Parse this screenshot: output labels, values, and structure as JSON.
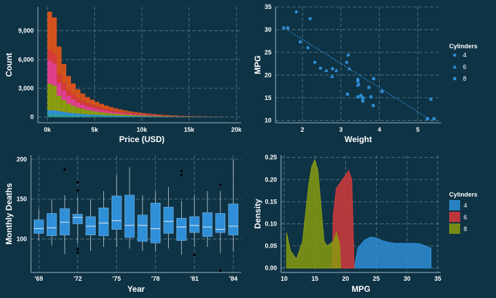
{
  "colors": {
    "background": "#0e3345",
    "blue": "#2f8fd8",
    "red": "#d83a3a",
    "olive": "#8a9c0f",
    "orange": "#d4521c",
    "pink": "#e0408e",
    "teal": "#2aa198"
  },
  "chart_data": [
    {
      "type": "bar",
      "stacked": true,
      "xlabel": "Price (USD)",
      "ylabel": "Count",
      "xticks": [
        0,
        5000,
        10000,
        15000,
        20000
      ],
      "xtick_labels": [
        "0k",
        "5k",
        "10k",
        "15k",
        "20k"
      ],
      "yticks": [
        0,
        3000,
        6000,
        9000
      ],
      "ytick_labels": [
        "0",
        "3,000",
        "6,000",
        "9,000"
      ],
      "xlim": [
        -1000,
        20500
      ],
      "ylim": [
        -600,
        11500
      ],
      "bin_start": 0,
      "bin_width": 500,
      "series": [
        {
          "name": "teal",
          "color": "#2aa198",
          "values": [
            300,
            300,
            260,
            230,
            200,
            180,
            160,
            140,
            120,
            110,
            100,
            90,
            80,
            70,
            60,
            55,
            50,
            45,
            40,
            35,
            30,
            25,
            20,
            18,
            16,
            14,
            12,
            10,
            9,
            8,
            7,
            6,
            5,
            5,
            4,
            4,
            3,
            3
          ]
        },
        {
          "name": "blue",
          "color": "#2f8fd8",
          "values": [
            400,
            400,
            350,
            300,
            260,
            230,
            200,
            180,
            160,
            140,
            125,
            110,
            100,
            90,
            80,
            70,
            62,
            55,
            50,
            45,
            40,
            36,
            32,
            28,
            25,
            22,
            19,
            16,
            14,
            12,
            10,
            9,
            8,
            7,
            6,
            5,
            4,
            4
          ]
        },
        {
          "name": "olive",
          "color": "#8a9c0f",
          "values": [
            2800,
            2600,
            1600,
            1250,
            950,
            780,
            640,
            540,
            460,
            400,
            350,
            300,
            260,
            230,
            200,
            175,
            150,
            130,
            115,
            100,
            90,
            80,
            70,
            60,
            52,
            45,
            40,
            35,
            30,
            26,
            22,
            19,
            16,
            14,
            12,
            10,
            8,
            6
          ]
        },
        {
          "name": "pink",
          "color": "#e0408e",
          "values": [
            2400,
            2300,
            1350,
            1000,
            800,
            650,
            530,
            440,
            370,
            320,
            280,
            240,
            210,
            185,
            160,
            140,
            120,
            105,
            92,
            80,
            70,
            62,
            55,
            48,
            42,
            36,
            31,
            27,
            23,
            20,
            17,
            15,
            13,
            11,
            9,
            8,
            7,
            6
          ]
        },
        {
          "name": "red",
          "color": "#d83a3a",
          "values": [
            1100,
            1000,
            900,
            750,
            620,
            520,
            440,
            380,
            330,
            290,
            250,
            220,
            190,
            165,
            145,
            125,
            110,
            95,
            82,
            72,
            62,
            55,
            48,
            42,
            36,
            31,
            27,
            23,
            20,
            17,
            15,
            13,
            11,
            9,
            8,
            7,
            6,
            5
          ]
        },
        {
          "name": "orange",
          "color": "#d4521c",
          "values": [
            4000,
            3800,
            2900,
            2000,
            1450,
            1150,
            930,
            770,
            650,
            560,
            480,
            410,
            355,
            305,
            265,
            230,
            200,
            170,
            148,
            128,
            110,
            95,
            82,
            72,
            62,
            53,
            46,
            40,
            34,
            29,
            25,
            21,
            18,
            15,
            13,
            11,
            9,
            7
          ]
        }
      ]
    },
    {
      "type": "scatter",
      "xlabel": "Weight",
      "ylabel": "MPG",
      "xticks": [
        2,
        3,
        4,
        5
      ],
      "yticks": [
        10,
        15,
        20,
        25,
        30,
        35
      ],
      "xlim": [
        1.3,
        5.6
      ],
      "ylim": [
        9.5,
        35
      ],
      "legend_title": "Cylinders",
      "legend_labels": [
        "4",
        "6",
        "8"
      ],
      "trend": {
        "x0": 1.5,
        "y0": 30.5,
        "x1": 5.4,
        "y1": 9.8
      },
      "points": [
        {
          "x": 1.51,
          "y": 30.4,
          "cyl": "4"
        },
        {
          "x": 1.62,
          "y": 30.4,
          "cyl": "4"
        },
        {
          "x": 1.84,
          "y": 33.9,
          "cyl": "4"
        },
        {
          "x": 1.94,
          "y": 27.3,
          "cyl": "4"
        },
        {
          "x": 2.14,
          "y": 26.0,
          "cyl": "4"
        },
        {
          "x": 2.2,
          "y": 32.4,
          "cyl": "4"
        },
        {
          "x": 2.32,
          "y": 22.8,
          "cyl": "4"
        },
        {
          "x": 2.47,
          "y": 21.5,
          "cyl": "4"
        },
        {
          "x": 2.62,
          "y": 21.0,
          "cyl": "6"
        },
        {
          "x": 2.77,
          "y": 19.7,
          "cyl": "6"
        },
        {
          "x": 2.78,
          "y": 21.4,
          "cyl": "4"
        },
        {
          "x": 2.88,
          "y": 21.0,
          "cyl": "6"
        },
        {
          "x": 3.15,
          "y": 22.8,
          "cyl": "4"
        },
        {
          "x": 3.17,
          "y": 15.8,
          "cyl": "8"
        },
        {
          "x": 3.19,
          "y": 24.4,
          "cyl": "4"
        },
        {
          "x": 3.22,
          "y": 21.4,
          "cyl": "6"
        },
        {
          "x": 3.44,
          "y": 19.2,
          "cyl": "6"
        },
        {
          "x": 3.44,
          "y": 17.8,
          "cyl": "6"
        },
        {
          "x": 3.44,
          "y": 18.7,
          "cyl": "8"
        },
        {
          "x": 3.46,
          "y": 18.1,
          "cyl": "6"
        },
        {
          "x": 3.44,
          "y": 15.2,
          "cyl": "8"
        },
        {
          "x": 3.52,
          "y": 15.5,
          "cyl": "8"
        },
        {
          "x": 3.57,
          "y": 14.3,
          "cyl": "8"
        },
        {
          "x": 3.57,
          "y": 15.0,
          "cyl": "8"
        },
        {
          "x": 3.73,
          "y": 17.3,
          "cyl": "8"
        },
        {
          "x": 3.78,
          "y": 15.2,
          "cyl": "8"
        },
        {
          "x": 3.84,
          "y": 13.3,
          "cyl": "8"
        },
        {
          "x": 3.85,
          "y": 19.2,
          "cyl": "8"
        },
        {
          "x": 4.07,
          "y": 16.4,
          "cyl": "8"
        },
        {
          "x": 5.25,
          "y": 10.4,
          "cyl": "8"
        },
        {
          "x": 5.34,
          "y": 14.7,
          "cyl": "8"
        },
        {
          "x": 5.42,
          "y": 10.4,
          "cyl": "8"
        }
      ]
    },
    {
      "type": "box",
      "xlabel": "Year",
      "ylabel": "Monthly Deaths",
      "xticks": [
        1969,
        1972,
        1975,
        1978,
        1981,
        1984
      ],
      "xtick_labels": [
        "'69",
        "'72",
        "'75",
        "'78",
        "'81",
        "'84"
      ],
      "yticks": [
        100,
        150,
        200
      ],
      "xlim": [
        1968.4,
        1984.6
      ],
      "ylim": [
        58,
        205
      ],
      "boxes": [
        {
          "year": 1969,
          "lo": 98,
          "q1": 107,
          "med": 113,
          "q3": 124,
          "hi": 138,
          "out": []
        },
        {
          "year": 1970,
          "lo": 92,
          "q1": 104,
          "med": 114,
          "q3": 132,
          "hi": 150,
          "out": []
        },
        {
          "year": 1971,
          "lo": 81,
          "q1": 105,
          "med": 121,
          "q3": 138,
          "hi": 155,
          "out": [
            187
          ]
        },
        {
          "year": 1972,
          "lo": 95,
          "q1": 119,
          "med": 127,
          "q3": 131,
          "hi": 152,
          "out": [
            171,
            161,
            87,
            83
          ]
        },
        {
          "year": 1973,
          "lo": 85,
          "q1": 105,
          "med": 116,
          "q3": 128,
          "hi": 150,
          "out": []
        },
        {
          "year": 1974,
          "lo": 90,
          "q1": 104,
          "med": 120,
          "q3": 139,
          "hi": 160,
          "out": []
        },
        {
          "year": 1975,
          "lo": 90,
          "q1": 112,
          "med": 123,
          "q3": 154,
          "hi": 180,
          "out": []
        },
        {
          "year": 1976,
          "lo": 88,
          "q1": 102,
          "med": 117,
          "q3": 155,
          "hi": 190,
          "out": []
        },
        {
          "year": 1977,
          "lo": 85,
          "q1": 97,
          "med": 117,
          "q3": 130,
          "hi": 155,
          "out": []
        },
        {
          "year": 1978,
          "lo": 85,
          "q1": 95,
          "med": 113,
          "q3": 145,
          "hi": 160,
          "out": []
        },
        {
          "year": 1979,
          "lo": 88,
          "q1": 107,
          "med": 122,
          "q3": 140,
          "hi": 165,
          "out": []
        },
        {
          "year": 1980,
          "lo": 80,
          "q1": 98,
          "med": 115,
          "q3": 126,
          "hi": 148,
          "out": [
            185,
            180
          ]
        },
        {
          "year": 1981,
          "lo": 90,
          "q1": 108,
          "med": 117,
          "q3": 128,
          "hi": 155,
          "out": [
            80
          ]
        },
        {
          "year": 1982,
          "lo": 90,
          "q1": 103,
          "med": 115,
          "q3": 133,
          "hi": 160,
          "out": []
        },
        {
          "year": 1983,
          "lo": 82,
          "q1": 108,
          "med": 112,
          "q3": 132,
          "hi": 160,
          "out": [
            168,
            60
          ]
        },
        {
          "year": 1984,
          "lo": 85,
          "q1": 105,
          "med": 116,
          "q3": 144,
          "hi": 200,
          "out": []
        }
      ]
    },
    {
      "type": "area",
      "xlabel": "MPG",
      "ylabel": "Density",
      "xticks": [
        10,
        15,
        20,
        25,
        30,
        35
      ],
      "yticks": [
        0.0,
        0.05,
        0.1,
        0.15,
        0.2,
        0.25
      ],
      "ytick_labels": [
        "0.00",
        "0.05",
        "0.10",
        "0.15",
        "0.20",
        "0.25"
      ],
      "xlim": [
        9.5,
        35.5
      ],
      "ylim": [
        -0.01,
        0.255
      ],
      "legend_title": "Cylinders",
      "legend_labels": [
        "4",
        "6",
        "8"
      ],
      "series": [
        {
          "name": "4",
          "color": "#2f8fd8",
          "x": [
            21.4,
            22,
            23,
            24,
            25,
            26,
            27,
            28,
            29,
            30,
            31,
            32,
            33,
            33.9
          ],
          "y": [
            0,
            0.045,
            0.062,
            0.07,
            0.068,
            0.062,
            0.058,
            0.056,
            0.056,
            0.056,
            0.056,
            0.055,
            0.05,
            0.045
          ]
        },
        {
          "name": "6",
          "color": "#d83a3a",
          "x": [
            17.8,
            18,
            18.5,
            19,
            19.5,
            20,
            20.5,
            21,
            21.4
          ],
          "y": [
            0,
            0.12,
            0.18,
            0.19,
            0.2,
            0.21,
            0.22,
            0.2,
            0.0
          ]
        },
        {
          "name": "8",
          "color": "#8a9c0f",
          "x": [
            10.4,
            11,
            12,
            13,
            14,
            14.5,
            15,
            15.5,
            16,
            16.5,
            17,
            18,
            18.5,
            19,
            19.2
          ],
          "y": [
            0.08,
            0.04,
            0.02,
            0.06,
            0.19,
            0.23,
            0.245,
            0.22,
            0.14,
            0.06,
            0.05,
            0.06,
            0.08,
            0.055,
            0.0
          ]
        }
      ]
    }
  ]
}
